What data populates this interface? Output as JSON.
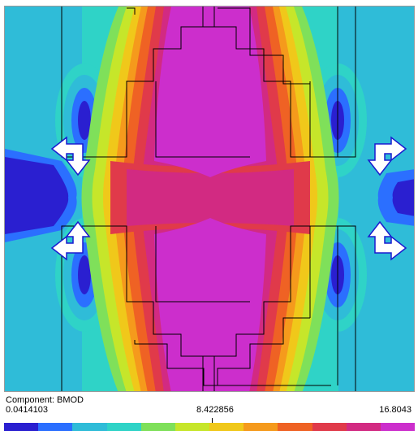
{
  "legend": {
    "component_label": "Component: BMOD",
    "min_label": "0.0414103",
    "mid_label": "8.422856",
    "max_label": "16.8043",
    "colors": [
      "#2a1fd0",
      "#2b6fff",
      "#2fbcd8",
      "#2fd3c7",
      "#7fe05a",
      "#c6e62a",
      "#f0c81a",
      "#f59a1c",
      "#ef6224",
      "#e03a4a",
      "#d22a82",
      "#cc2ecc"
    ]
  },
  "arrows": {
    "icon": "double-headed-arrow-icon",
    "fill": "#ffffff",
    "stroke": "#1a1ad0"
  }
}
